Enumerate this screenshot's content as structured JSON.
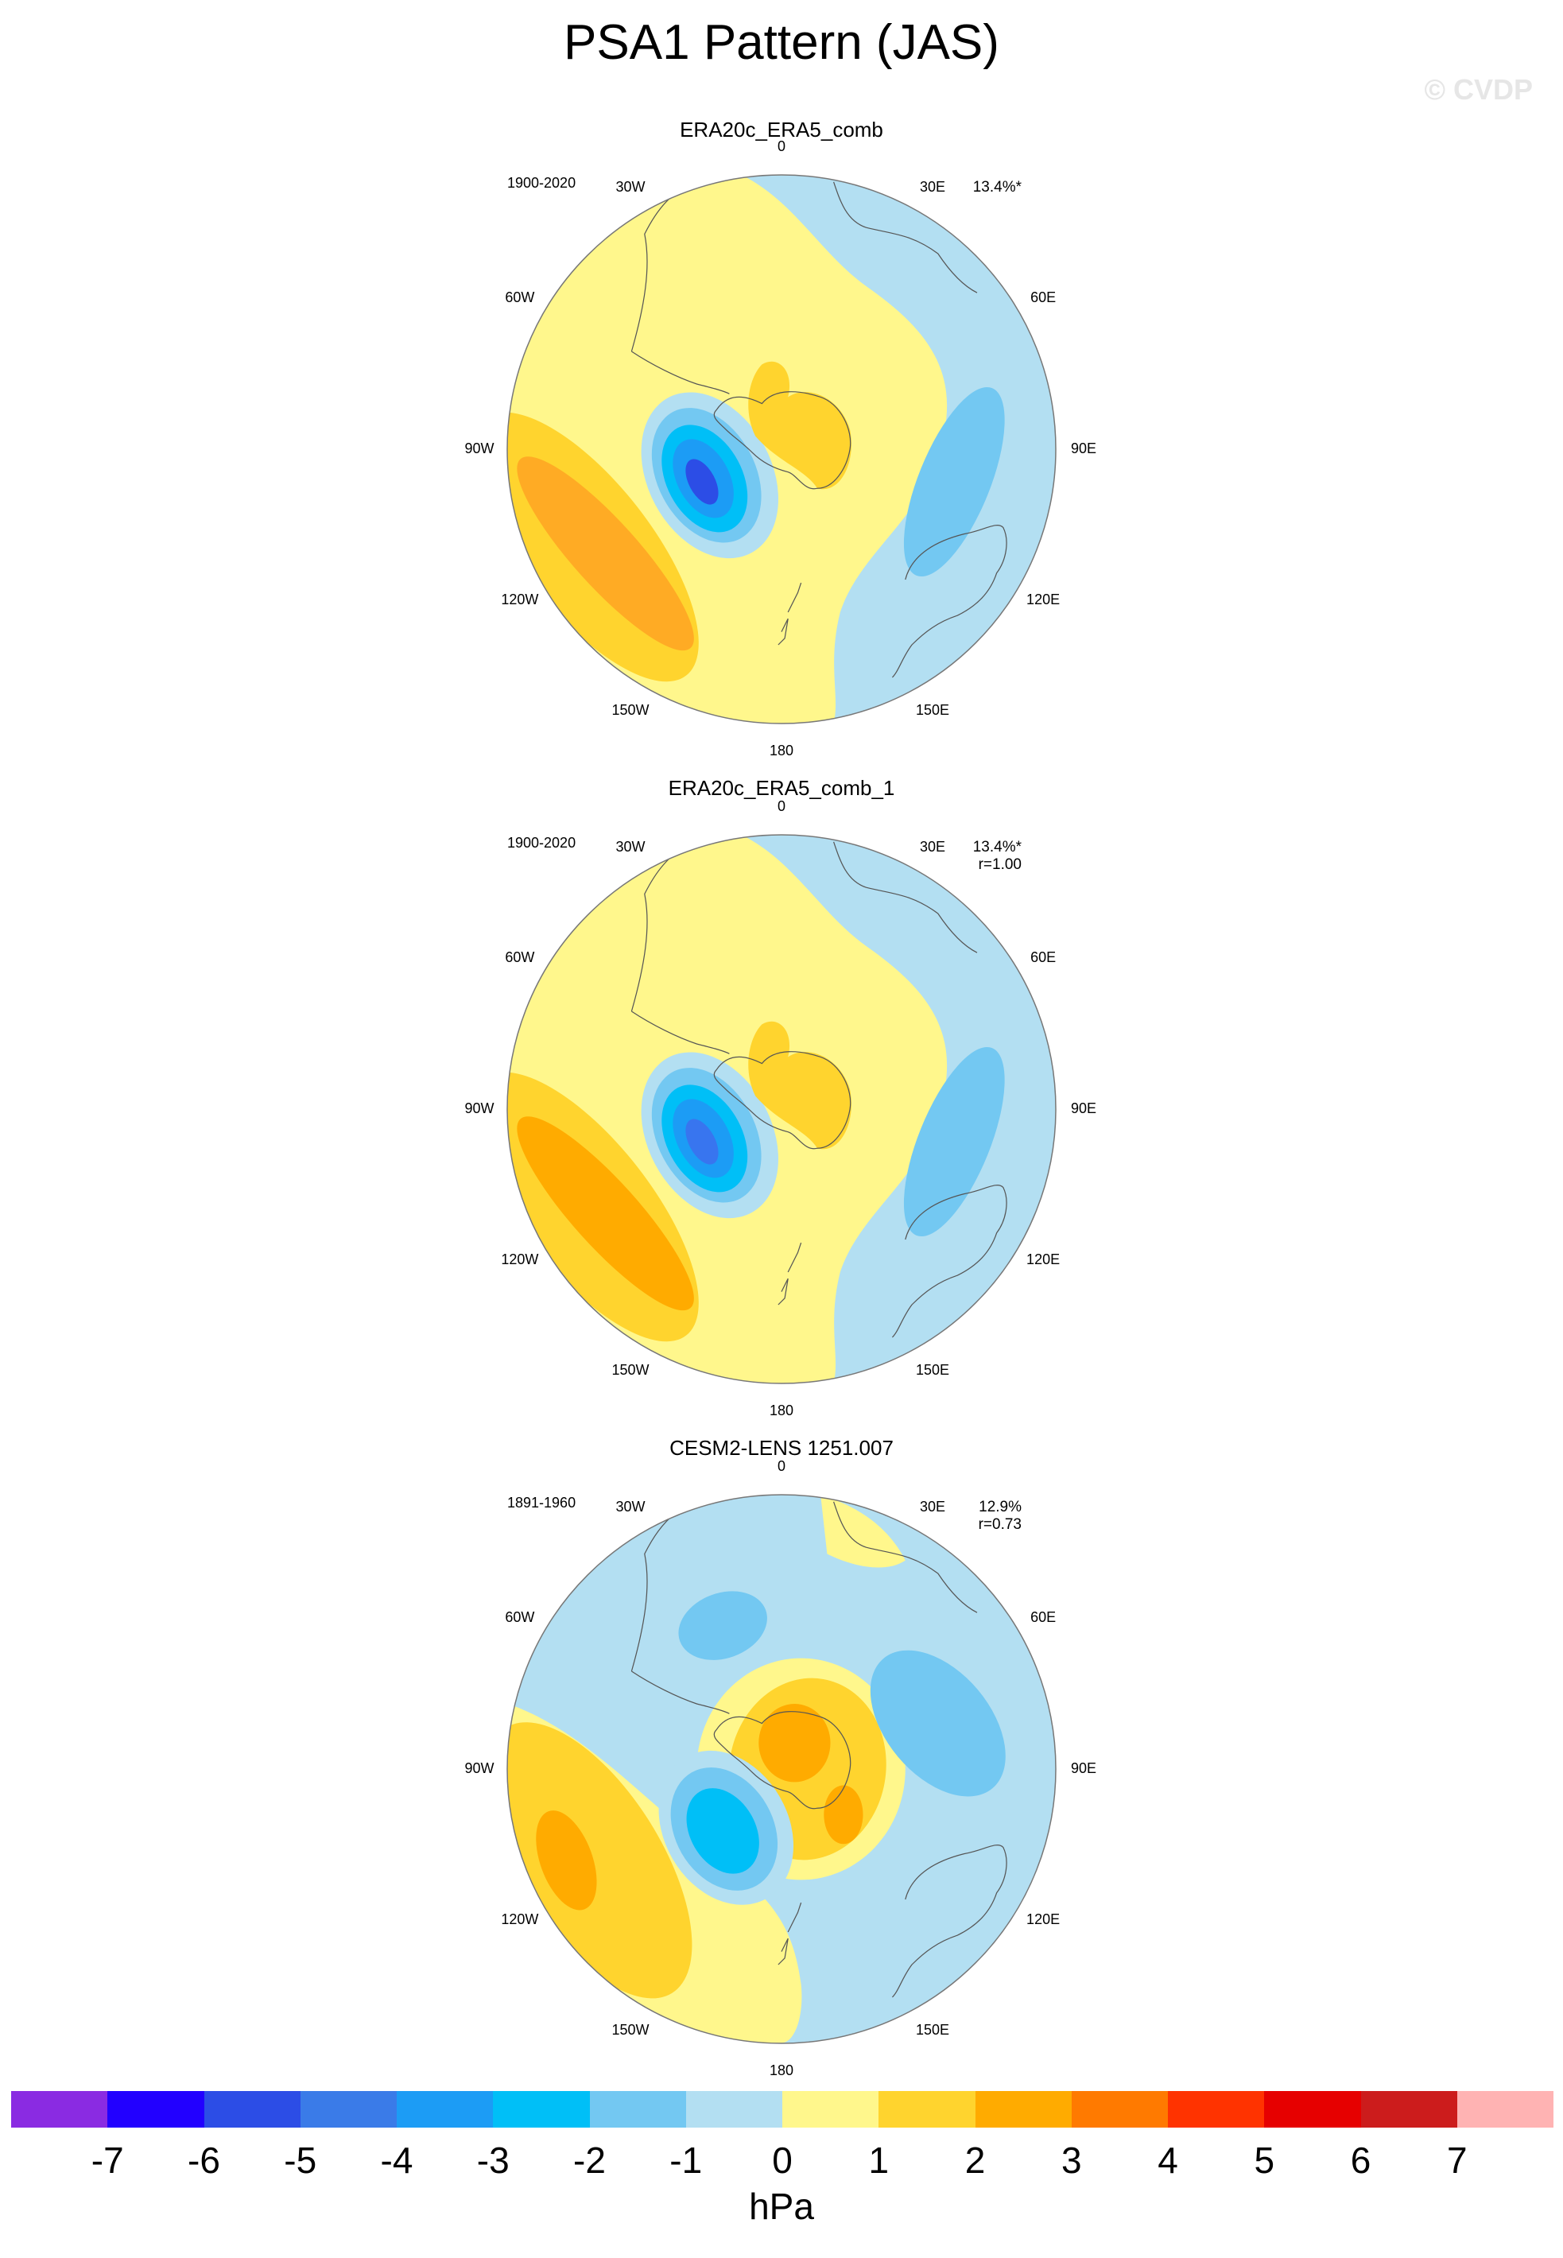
{
  "title": "PSA1 Pattern (JAS)",
  "credit": "© CVDP",
  "longitude_labels": [
    "0",
    "30E",
    "60E",
    "90E",
    "120E",
    "150E",
    "180",
    "150W",
    "120W",
    "90W",
    "60W",
    "30W"
  ],
  "panels": [
    {
      "name": "ERA20c_ERA5_comb",
      "period": "1900-2020",
      "variance": "13.4%*",
      "correlation": ""
    },
    {
      "name": "ERA20c_ERA5_comb_1",
      "period": "1900-2020",
      "variance": "13.4%*",
      "correlation": "r=1.00"
    },
    {
      "name": "CESM2-LENS 1251.007",
      "period": "1891-1960",
      "variance": "12.9%",
      "correlation": "r=0.73"
    }
  ],
  "colors": {
    "ocean_neg1": "#b3dff2",
    "neg2": "#73c8f2",
    "neg3": "#00bff7",
    "neg4": "#1c9cf5",
    "neg5": "#3875ef",
    "neg6": "#2c4de6",
    "pos1": "#fff78c",
    "pos2": "#ffd42e",
    "pos3": "#ffab00",
    "pos4": "#ff7a00",
    "coast": "#555555"
  },
  "chart_data": {
    "type": "heatmap",
    "title": "PSA1 Pattern (JAS)",
    "projection": "south polar stereographic",
    "units": "hPa",
    "colorbar": {
      "levels": [
        -7,
        -6,
        -5,
        -4,
        -3,
        -2,
        -1,
        0,
        1,
        2,
        3,
        4,
        5,
        6,
        7
      ],
      "colors": [
        "#8a2be2",
        "#2200ff",
        "#2c4de6",
        "#3a7be8",
        "#1c9cf5",
        "#00bff7",
        "#73c8f2",
        "#b3dff2",
        "#fff78c",
        "#ffd42e",
        "#ffab00",
        "#ff7a00",
        "#ff3300",
        "#e60000",
        "#cc1c1c",
        "#ffb3b3"
      ]
    },
    "panels": [
      {
        "name": "ERA20c_ERA5_comb",
        "period": "1900-2020",
        "variance": "13.4%*",
        "min_center_hPa": -5,
        "max_center_hPa": 3
      },
      {
        "name": "ERA20c_ERA5_comb_1",
        "period": "1900-2020",
        "variance": "13.4%*",
        "pattern_correlation": 1.0,
        "min_center_hPa": -5,
        "max_center_hPa": 3
      },
      {
        "name": "CESM2-LENS 1251.007",
        "period": "1891-1960",
        "variance": "12.9%",
        "pattern_correlation": 0.73,
        "min_center_hPa": -4,
        "max_center_hPa": 3
      }
    ]
  }
}
